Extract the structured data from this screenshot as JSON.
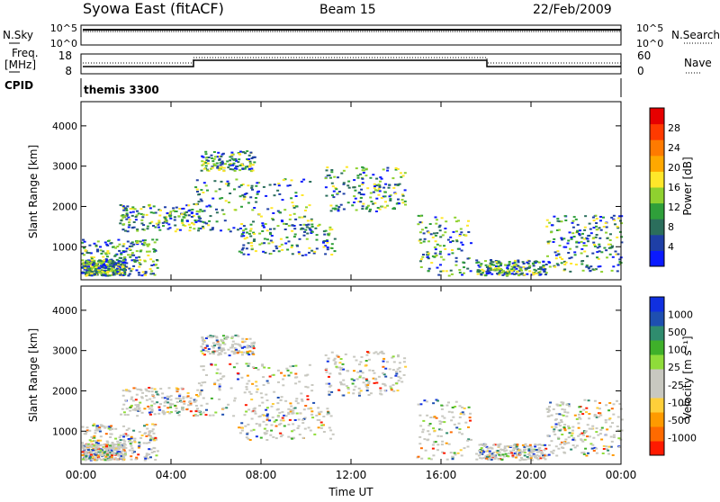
{
  "header": {
    "station": "Syowa East (fitACF)",
    "beam": "Beam 15",
    "date": "22/Feb/2009"
  },
  "strip": {
    "nsky_label": "N.Sky",
    "nsky_ticks": [
      "10^5",
      "10^0"
    ],
    "nsearch_label": "N.Search",
    "nsearch_ticks": [
      "10^5",
      "10^0"
    ],
    "freq_label": [
      "Freq.",
      "[MHz]"
    ],
    "freq_ticks": [
      "18",
      "8"
    ],
    "nave_label": "Nave",
    "nave_ticks": [
      "60",
      "0"
    ],
    "cpid_label": "CPID",
    "cpid_value": "themis 3300"
  },
  "colors": {
    "power": [
      "#0a1aff",
      "#1e3fa6",
      "#2b6e5c",
      "#2f9f3a",
      "#8fd12f",
      "#ffe72a",
      "#ffa800",
      "#ff7a00",
      "#ff3a00",
      "#e60000"
    ],
    "velocity": [
      "#ff1a00",
      "#ff6a00",
      "#ff9a00",
      "#ffcf3a",
      "#c8c8c0",
      "#c8c8c0",
      "#8fdc3a",
      "#3fb02a",
      "#2f8c6e",
      "#1e4fb0",
      "#1030e0"
    ]
  },
  "chart_data": [
    {
      "type": "heatmap",
      "ylabel": "Slant Range [km]",
      "xlim": [
        "00:00",
        "24:00"
      ],
      "ylim": [
        180,
        4600
      ],
      "y_ticks": [
        1000,
        2000,
        3000,
        4000
      ],
      "colorbar": {
        "label": "Power [dB]",
        "range": [
          0,
          30
        ],
        "ticks": [
          "4",
          "8",
          "12",
          "16",
          "20",
          "24",
          "28"
        ]
      }
    },
    {
      "type": "heatmap",
      "ylabel": "Slant Range [km]",
      "xlabel": "Time UT",
      "xlim": [
        "00:00",
        "24:00"
      ],
      "x_ticks": [
        "00:00",
        "04:00",
        "08:00",
        "12:00",
        "16:00",
        "20:00",
        "00:00"
      ],
      "ylim": [
        180,
        4600
      ],
      "y_ticks": [
        1000,
        2000,
        3000,
        4000
      ],
      "colorbar": {
        "label": "Velocity [m s⁻¹]",
        "ticks": [
          "1000",
          "500",
          "100",
          "25",
          "-25",
          "-100",
          "-500",
          "-1000"
        ]
      }
    }
  ]
}
